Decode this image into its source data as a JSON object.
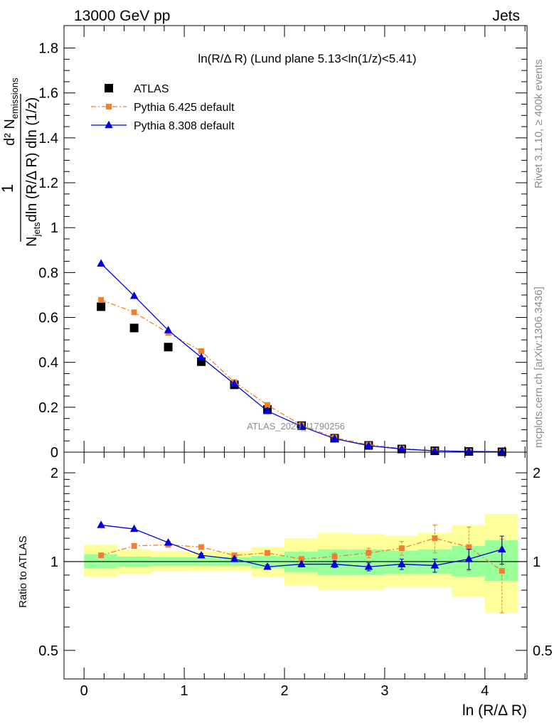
{
  "header": {
    "left": "13000 GeV pp",
    "right": "Jets"
  },
  "side_labels": {
    "rivet": "Rivet 3.1.10, ≥ 400k events",
    "mcplots": "mcplots.cern.ch [arXiv:1306.3436]"
  },
  "watermark": "ATLAS_2020_I1790256",
  "chart_data": [
    {
      "type": "scatter",
      "title": "ln(R/Δ R) (Lund plane 5.13<ln(1/z)<5.41)",
      "ylabel_parts": {
        "one": "1",
        "n_jets": "N",
        "jets_sub": "jets",
        "dln_r": "dln (R/Δ R) dln (1/z)",
        "d2": "d² N",
        "emissions_sub": "emissions"
      },
      "xlim": [
        -0.2,
        4.42
      ],
      "ylim": [
        0,
        1.9
      ],
      "y_ticks": [
        0,
        0.2,
        0.4,
        0.6,
        0.8,
        1,
        1.2,
        1.4,
        1.6,
        1.8
      ],
      "y_tick_labels": [
        "0",
        "0.2",
        "0.4",
        "0.6",
        "0.8",
        "1",
        "1.2",
        "1.4",
        "1.6",
        "1.8"
      ],
      "x": [
        0.17,
        0.5,
        0.84,
        1.17,
        1.5,
        1.83,
        2.17,
        2.5,
        2.84,
        3.17,
        3.5,
        3.84,
        4.17
      ],
      "series": [
        {
          "name": "ATLAS",
          "color": "#000000",
          "marker": "square",
          "values": [
            0.648,
            0.553,
            0.468,
            0.403,
            0.3,
            0.19,
            0.118,
            0.062,
            0.03,
            0.014,
            0.006,
            0.003,
            0.0015
          ]
        },
        {
          "name": "Pythia 6.425 default",
          "color": "#f08030",
          "marker": "square",
          "line": "dashdot",
          "values": [
            0.678,
            0.623,
            0.531,
            0.45,
            0.312,
            0.21,
            0.12,
            0.065,
            0.033,
            0.016,
            0.007,
            0.0035,
            0.0015
          ]
        },
        {
          "name": "Pythia 8.308 default",
          "color": "#0000dd",
          "marker": "triangle",
          "line": "solid",
          "values": [
            0.84,
            0.696,
            0.543,
            0.422,
            0.304,
            0.183,
            0.115,
            0.06,
            0.029,
            0.014,
            0.006,
            0.003,
            0.0018
          ]
        }
      ],
      "legend_placement": "top-left"
    },
    {
      "type": "scatter",
      "ylabel": "Ratio to ATLAS",
      "xlabel": "ln (R/Δ R)",
      "xlim": [
        -0.2,
        4.42
      ],
      "ylim": [
        0.4,
        2.35
      ],
      "y_scale": "log",
      "y_ticks": [
        0.5,
        1,
        2
      ],
      "y_tick_labels": [
        "0.5",
        "1",
        "2"
      ],
      "x_ticks": [
        0,
        1,
        2,
        3,
        4
      ],
      "x_tick_labels": [
        "0",
        "1",
        "2",
        "3",
        "4"
      ],
      "band_edges": [
        0,
        0.33,
        0.67,
        1.0,
        1.33,
        1.67,
        2.0,
        2.33,
        2.67,
        3.0,
        3.33,
        3.67,
        4.0,
        4.33
      ],
      "band_inner": [
        [
          0.95,
          1.06
        ],
        [
          0.96,
          1.04
        ],
        [
          0.965,
          1.035
        ],
        [
          0.965,
          1.035
        ],
        [
          0.965,
          1.035
        ],
        [
          0.95,
          1.045
        ],
        [
          0.92,
          1.08
        ],
        [
          0.9,
          1.1
        ],
        [
          0.9,
          1.1
        ],
        [
          0.91,
          1.09
        ],
        [
          0.91,
          1.1
        ],
        [
          0.89,
          1.13
        ],
        [
          0.86,
          1.18
        ]
      ],
      "band_outer": [
        [
          0.89,
          1.14
        ],
        [
          0.91,
          1.1
        ],
        [
          0.925,
          1.085
        ],
        [
          0.93,
          1.08
        ],
        [
          0.93,
          1.085
        ],
        [
          0.89,
          1.12
        ],
        [
          0.83,
          1.2
        ],
        [
          0.8,
          1.25
        ],
        [
          0.8,
          1.24
        ],
        [
          0.82,
          1.22
        ],
        [
          0.82,
          1.25
        ],
        [
          0.76,
          1.33
        ],
        [
          0.67,
          1.45
        ]
      ],
      "series": [
        {
          "name": "Pythia 6.425 default",
          "color": "#f08030",
          "marker": "square",
          "line": "dashdot",
          "values": [
            1.05,
            1.13,
            1.14,
            1.12,
            1.05,
            1.07,
            1.02,
            1.04,
            1.07,
            1.11,
            1.2,
            1.12,
            0.93
          ],
          "err": [
            0.01,
            0.01,
            0.01,
            0.015,
            0.01,
            0.02,
            0.02,
            0.03,
            0.04,
            0.06,
            0.13,
            0.19,
            0.26
          ]
        },
        {
          "name": "Pythia 8.308 default",
          "color": "#0000dd",
          "marker": "triangle",
          "line": "solid",
          "values": [
            1.33,
            1.29,
            1.16,
            1.05,
            1.02,
            0.96,
            0.98,
            0.98,
            0.96,
            0.98,
            0.97,
            1.02,
            1.1
          ],
          "err": [
            0.01,
            0.01,
            0.01,
            0.015,
            0.01,
            0.015,
            0.02,
            0.025,
            0.03,
            0.04,
            0.05,
            0.08,
            0.12
          ]
        }
      ]
    }
  ]
}
